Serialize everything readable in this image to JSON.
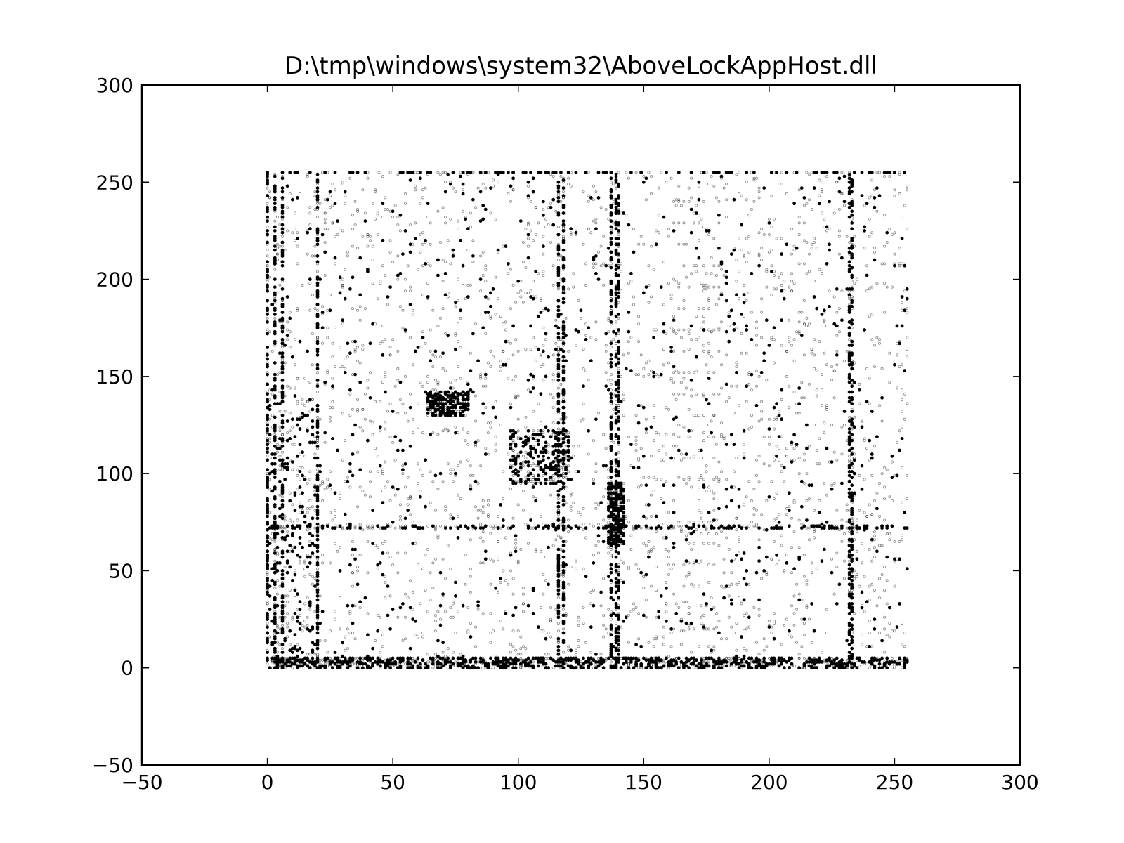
{
  "chart_data": {
    "type": "scatter",
    "title": "D:\\tmp\\windows\\system32\\AboveLockAppHost.dll",
    "xlabel": "",
    "ylabel": "",
    "xlim": [
      -50,
      300
    ],
    "ylim": [
      -50,
      300
    ],
    "x_ticks": [
      -50,
      0,
      50,
      100,
      150,
      200,
      250,
      300
    ],
    "y_ticks": [
      -50,
      0,
      50,
      100,
      150,
      200,
      250,
      300
    ],
    "x_tick_labels": [
      "−50",
      "0",
      "50",
      "100",
      "150",
      "200",
      "250",
      "300"
    ],
    "y_tick_labels": [
      "−50",
      "0",
      "50",
      "100",
      "150",
      "200",
      "250",
      "300"
    ],
    "grid": false,
    "marker_color": "#000000",
    "description_of_data": "byte-pair scatter of consecutive bytes, x and y in range 0..255",
    "dense_columns_x": [
      0,
      3,
      6,
      20,
      116,
      118,
      137,
      139,
      140,
      232,
      233
    ],
    "dense_rows_y": [
      0,
      1,
      2,
      3,
      4,
      5,
      72,
      73,
      255
    ],
    "dense_clusters": [
      {
        "x_range": [
          97,
          120
        ],
        "y_range": [
          95,
          122
        ]
      },
      {
        "x_range": [
          64,
          80
        ],
        "y_range": [
          130,
          142
        ]
      },
      {
        "x_range": [
          136,
          142
        ],
        "y_range": [
          64,
          95
        ]
      },
      {
        "x_range": [
          0,
          20
        ],
        "y_range": [
          0,
          140
        ]
      }
    ]
  }
}
